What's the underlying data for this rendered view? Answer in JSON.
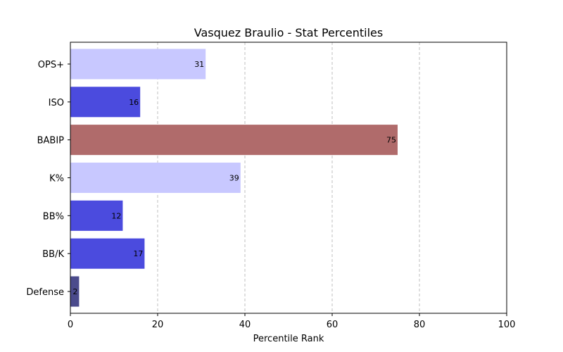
{
  "chart_data": {
    "type": "bar",
    "orientation": "horizontal",
    "title": "Vasquez Braulio - Stat Percentiles",
    "xlabel": "Percentile Rank",
    "ylabel": "",
    "xlim": [
      0,
      100
    ],
    "xticks": [
      0,
      20,
      40,
      60,
      80,
      100
    ],
    "grid": "x-dashed",
    "categories": [
      "OPS+",
      "ISO",
      "BABIP",
      "K%",
      "BB%",
      "BB/K",
      "Defense"
    ],
    "values": [
      31,
      16,
      75,
      39,
      12,
      17,
      2
    ],
    "colors": [
      "#c8c8ff",
      "#4b4bde",
      "#b06b6b",
      "#c8c8ff",
      "#4b4bde",
      "#4b4bde",
      "#4b4b8c"
    ]
  }
}
